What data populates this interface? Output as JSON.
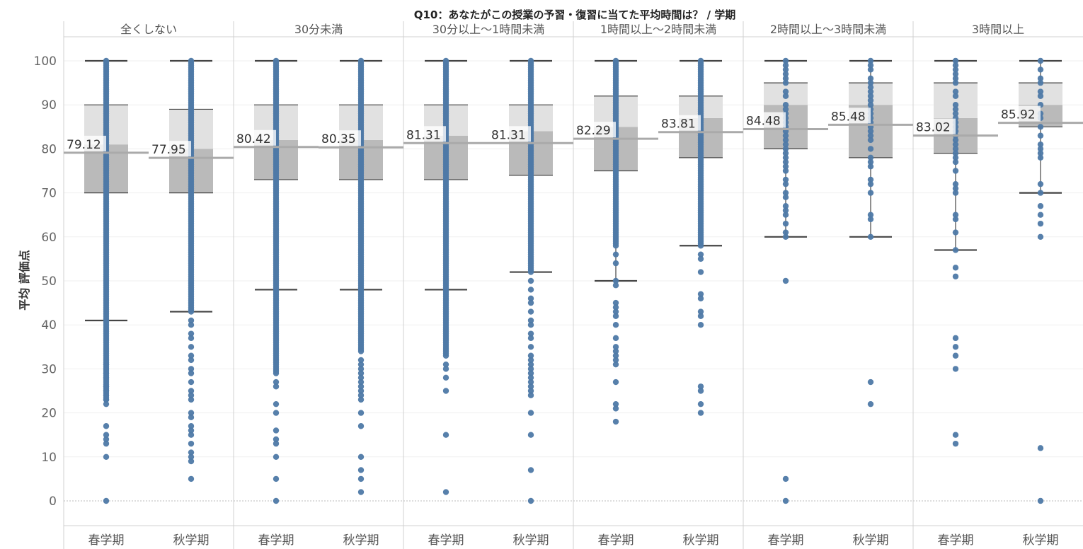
{
  "chart_data": {
    "type": "boxplot",
    "title": "Q10：あなたがこの授業の予習・復習に当てた平均時間は？ / 学期",
    "ylabel": "平均 評価点",
    "ylim": [
      -5,
      102
    ],
    "yticks": [
      0,
      10,
      20,
      30,
      40,
      50,
      60,
      70,
      80,
      90,
      100
    ],
    "grid": true,
    "colors": {
      "point": "#4e79a7",
      "box_lower": "#bababa",
      "box_upper": "#e1e1e1",
      "mean_line": "#aaaaaa",
      "whisker": "#444444"
    },
    "groups": [
      {
        "label": "全くしない",
        "boxes": [
          {
            "category": "春学期",
            "whisker_low": 41,
            "q1": 70,
            "median": 81,
            "q3": 90,
            "whisker_high": 100,
            "mean": 79.12,
            "mean_label": "79.12",
            "points_dense": [
              [
                23,
                100
              ]
            ],
            "outliers": [
              22,
              23,
              24,
              25,
              26,
              28,
              29,
              30,
              31,
              13,
              14,
              15,
              17,
              10,
              0
            ]
          },
          {
            "category": "秋学期",
            "whisker_low": 43,
            "q1": 70,
            "median": 80,
            "q3": 89,
            "whisker_high": 100,
            "mean": 77.95,
            "mean_label": "77.95",
            "points_dense": [
              [
                43,
                100
              ]
            ],
            "outliers": [
              41,
              40,
              38,
              37,
              35,
              33,
              32,
              30,
              29,
              27,
              25,
              24,
              23,
              20,
              19,
              17,
              16,
              15,
              13,
              11,
              10,
              9,
              5
            ]
          }
        ]
      },
      {
        "label": "30分未満",
        "boxes": [
          {
            "category": "春学期",
            "whisker_low": 48,
            "q1": 73,
            "median": 82,
            "q3": 90,
            "whisker_high": 100,
            "mean": 80.42,
            "mean_label": "80.42",
            "points_dense": [
              [
                29,
                100
              ]
            ],
            "outliers": [
              27,
              26,
              22,
              20,
              16,
              14,
              13,
              10,
              5,
              0
            ]
          },
          {
            "category": "秋学期",
            "whisker_low": 48,
            "q1": 73,
            "median": 82,
            "q3": 90,
            "whisker_high": 100,
            "mean": 80.35,
            "mean_label": "80.35",
            "points_dense": [
              [
                34,
                100
              ]
            ],
            "outliers": [
              32,
              31,
              30,
              29,
              28,
              27,
              26,
              25,
              24,
              23,
              20,
              17,
              10,
              7,
              5,
              2
            ]
          }
        ]
      },
      {
        "label": "30分以上～1時間未満",
        "boxes": [
          {
            "category": "春学期",
            "whisker_low": 48,
            "q1": 73,
            "median": 83,
            "q3": 90,
            "whisker_high": 100,
            "mean": 81.31,
            "mean_label": "81.31",
            "points_dense": [
              [
                33,
                100
              ]
            ],
            "outliers": [
              31,
              30,
              28,
              25,
              15,
              2
            ]
          },
          {
            "category": "秋学期",
            "whisker_low": 52,
            "q1": 74,
            "median": 84,
            "q3": 90,
            "whisker_high": 100,
            "mean": 81.31,
            "mean_label": "81.31",
            "points_dense": [
              [
                52,
                100
              ]
            ],
            "outliers": [
              50,
              48,
              46,
              45,
              43,
              41,
              40,
              38,
              37,
              35,
              33,
              32,
              31,
              30,
              29,
              28,
              27,
              26,
              25,
              24,
              20,
              15,
              7,
              0
            ]
          }
        ]
      },
      {
        "label": "1時間以上～2時間未満",
        "boxes": [
          {
            "category": "春学期",
            "whisker_low": 50,
            "q1": 75,
            "median": 85,
            "q3": 92,
            "whisker_high": 100,
            "mean": 82.29,
            "mean_label": "82.29",
            "points_dense": [
              [
                58,
                100
              ]
            ],
            "outliers": [
              56,
              54,
              50,
              49,
              45,
              44,
              43,
              42,
              40,
              37,
              35,
              34,
              33,
              32,
              31,
              27,
              22,
              21,
              18
            ]
          },
          {
            "category": "秋学期",
            "whisker_low": 58,
            "q1": 78,
            "median": 87,
            "q3": 92,
            "whisker_high": 100,
            "mean": 83.81,
            "mean_label": "83.81",
            "points_dense": [
              [
                58,
                100
              ]
            ],
            "outliers": [
              56,
              55,
              52,
              47,
              46,
              43,
              42,
              40,
              26,
              25,
              22,
              20
            ]
          }
        ]
      },
      {
        "label": "2時間以上～3時間未満",
        "boxes": [
          {
            "category": "春学期",
            "whisker_low": 60,
            "q1": 80,
            "median": 90,
            "q3": 95,
            "whisker_high": 100,
            "mean": 84.48,
            "mean_label": "84.48",
            "points": [
              100,
              99,
              98,
              97,
              96,
              95,
              93,
              92,
              90,
              89,
              88,
              87,
              86,
              85,
              84,
              83,
              82,
              81,
              80,
              79,
              78,
              77,
              76,
              75,
              73,
              72,
              70,
              69,
              67,
              66,
              65,
              63,
              61,
              60
            ],
            "outliers": [
              50,
              5,
              0
            ]
          },
          {
            "category": "秋学期",
            "whisker_low": 60,
            "q1": 78,
            "median": 90,
            "q3": 95,
            "whisker_high": 100,
            "mean": 85.48,
            "mean_label": "85.48",
            "points": [
              100,
              99,
              98,
              96,
              95,
              94,
              93,
              92,
              91,
              90,
              89,
              88,
              87,
              86,
              85,
              84,
              83,
              82,
              80,
              78,
              77,
              76,
              73,
              72,
              70,
              65,
              64,
              60
            ],
            "outliers": [
              27,
              22
            ]
          }
        ]
      },
      {
        "label": "3時間以上",
        "boxes": [
          {
            "category": "春学期",
            "whisker_low": 57,
            "q1": 79,
            "median": 87,
            "q3": 95,
            "whisker_high": 100,
            "mean": 83.02,
            "mean_label": "83.02",
            "points": [
              100,
              99,
              98,
              97,
              96,
              95,
              93,
              92,
              90,
              89,
              88,
              87,
              86,
              85,
              84,
              83,
              82,
              81,
              80,
              79,
              78,
              77,
              75,
              72,
              71,
              70,
              65,
              64,
              61,
              57
            ],
            "outliers": [
              53,
              51,
              37,
              35,
              33,
              30,
              15,
              13
            ]
          },
          {
            "category": "秋学期",
            "whisker_low": 70,
            "q1": 85,
            "median": 90,
            "q3": 95,
            "whisker_high": 100,
            "mean": 85.92,
            "mean_label": "85.92",
            "points": [
              100,
              98,
              96,
              95,
              93,
              92,
              90,
              88,
              87,
              85,
              83,
              81,
              80,
              79,
              78,
              72,
              70
            ],
            "outliers": [
              67,
              65,
              63,
              60,
              12,
              0
            ]
          }
        ]
      }
    ]
  }
}
